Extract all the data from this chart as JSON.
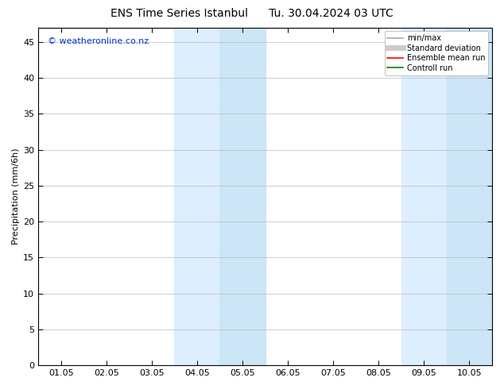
{
  "title_left": "ENS Time Series Istanbul",
  "title_right": "Tu. 30.04.2024 03 UTC",
  "ylabel": "Precipitation (mm/6h)",
  "xlabel": "",
  "watermark": "© weatheronline.co.nz",
  "watermark_color": "#0033cc",
  "xtick_labels": [
    "01.05",
    "02.05",
    "03.05",
    "04.05",
    "05.05",
    "06.05",
    "07.05",
    "08.05",
    "09.05",
    "10.05"
  ],
  "ylim": [
    0,
    47
  ],
  "ytick_positions": [
    0,
    5,
    10,
    15,
    20,
    25,
    30,
    35,
    40,
    45
  ],
  "shaded_regions": [
    {
      "xmin": 3.0,
      "xmax": 4.0,
      "color": "#ddeeff"
    },
    {
      "xmin": 4.0,
      "xmax": 5.0,
      "color": "#cce5f7"
    },
    {
      "xmin": 8.0,
      "xmax": 9.0,
      "color": "#ddeeff"
    },
    {
      "xmin": 9.0,
      "xmax": 10.0,
      "color": "#cce5f7"
    }
  ],
  "legend_entries": [
    {
      "label": "min/max",
      "color": "#aaaaaa",
      "linewidth": 1.2
    },
    {
      "label": "Standard deviation",
      "color": "#cccccc",
      "linewidth": 5
    },
    {
      "label": "Ensemble mean run",
      "color": "#ff0000",
      "linewidth": 1.2
    },
    {
      "label": "Controll run",
      "color": "#008800",
      "linewidth": 1.2
    }
  ],
  "background_color": "#ffffff",
  "plot_bg_color": "#ffffff",
  "grid_color": "#bbbbbb",
  "title_fontsize": 10,
  "label_fontsize": 8,
  "tick_fontsize": 8,
  "watermark_fontsize": 8
}
